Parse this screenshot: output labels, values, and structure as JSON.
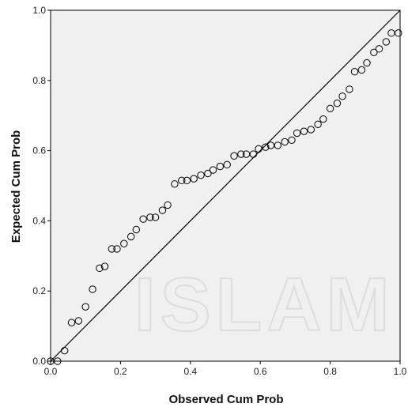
{
  "chart_data": {
    "type": "scatter",
    "title": "",
    "xlabel": "Observed Cum Prob",
    "ylabel": "Expected Cum Prob",
    "xlim": [
      0.0,
      1.0
    ],
    "ylim": [
      0.0,
      1.0
    ],
    "x_ticks": [
      "0.0",
      "0.2",
      "0.4",
      "0.6",
      "0.8",
      "1.0"
    ],
    "y_ticks": [
      "0.0",
      "0.2",
      "0.4",
      "0.6",
      "0.8",
      "1.0"
    ],
    "reference_line": {
      "from": [
        0,
        0
      ],
      "to": [
        1,
        1
      ]
    },
    "grid": false,
    "plot_background": "#f0f0f0",
    "marker_color": "#000000",
    "marker": "open-circle",
    "watermark_text": "ISLAM",
    "points": [
      [
        0.0,
        0.0
      ],
      [
        0.02,
        0.0
      ],
      [
        0.04,
        0.03
      ],
      [
        0.06,
        0.11
      ],
      [
        0.08,
        0.115
      ],
      [
        0.1,
        0.155
      ],
      [
        0.12,
        0.205
      ],
      [
        0.14,
        0.265
      ],
      [
        0.155,
        0.27
      ],
      [
        0.175,
        0.32
      ],
      [
        0.19,
        0.32
      ],
      [
        0.21,
        0.335
      ],
      [
        0.23,
        0.355
      ],
      [
        0.245,
        0.375
      ],
      [
        0.265,
        0.405
      ],
      [
        0.285,
        0.41
      ],
      [
        0.3,
        0.41
      ],
      [
        0.32,
        0.43
      ],
      [
        0.335,
        0.445
      ],
      [
        0.355,
        0.505
      ],
      [
        0.375,
        0.515
      ],
      [
        0.39,
        0.515
      ],
      [
        0.41,
        0.52
      ],
      [
        0.43,
        0.53
      ],
      [
        0.45,
        0.535
      ],
      [
        0.465,
        0.545
      ],
      [
        0.485,
        0.555
      ],
      [
        0.505,
        0.56
      ],
      [
        0.525,
        0.585
      ],
      [
        0.545,
        0.59
      ],
      [
        0.56,
        0.59
      ],
      [
        0.58,
        0.59
      ],
      [
        0.595,
        0.605
      ],
      [
        0.615,
        0.61
      ],
      [
        0.63,
        0.615
      ],
      [
        0.65,
        0.615
      ],
      [
        0.67,
        0.625
      ],
      [
        0.69,
        0.63
      ],
      [
        0.705,
        0.65
      ],
      [
        0.725,
        0.655
      ],
      [
        0.745,
        0.66
      ],
      [
        0.765,
        0.675
      ],
      [
        0.78,
        0.69
      ],
      [
        0.8,
        0.72
      ],
      [
        0.82,
        0.735
      ],
      [
        0.835,
        0.755
      ],
      [
        0.855,
        0.775
      ],
      [
        0.87,
        0.825
      ],
      [
        0.89,
        0.83
      ],
      [
        0.905,
        0.85
      ],
      [
        0.925,
        0.88
      ],
      [
        0.94,
        0.89
      ],
      [
        0.96,
        0.91
      ],
      [
        0.975,
        0.935
      ],
      [
        0.995,
        0.935
      ]
    ]
  }
}
